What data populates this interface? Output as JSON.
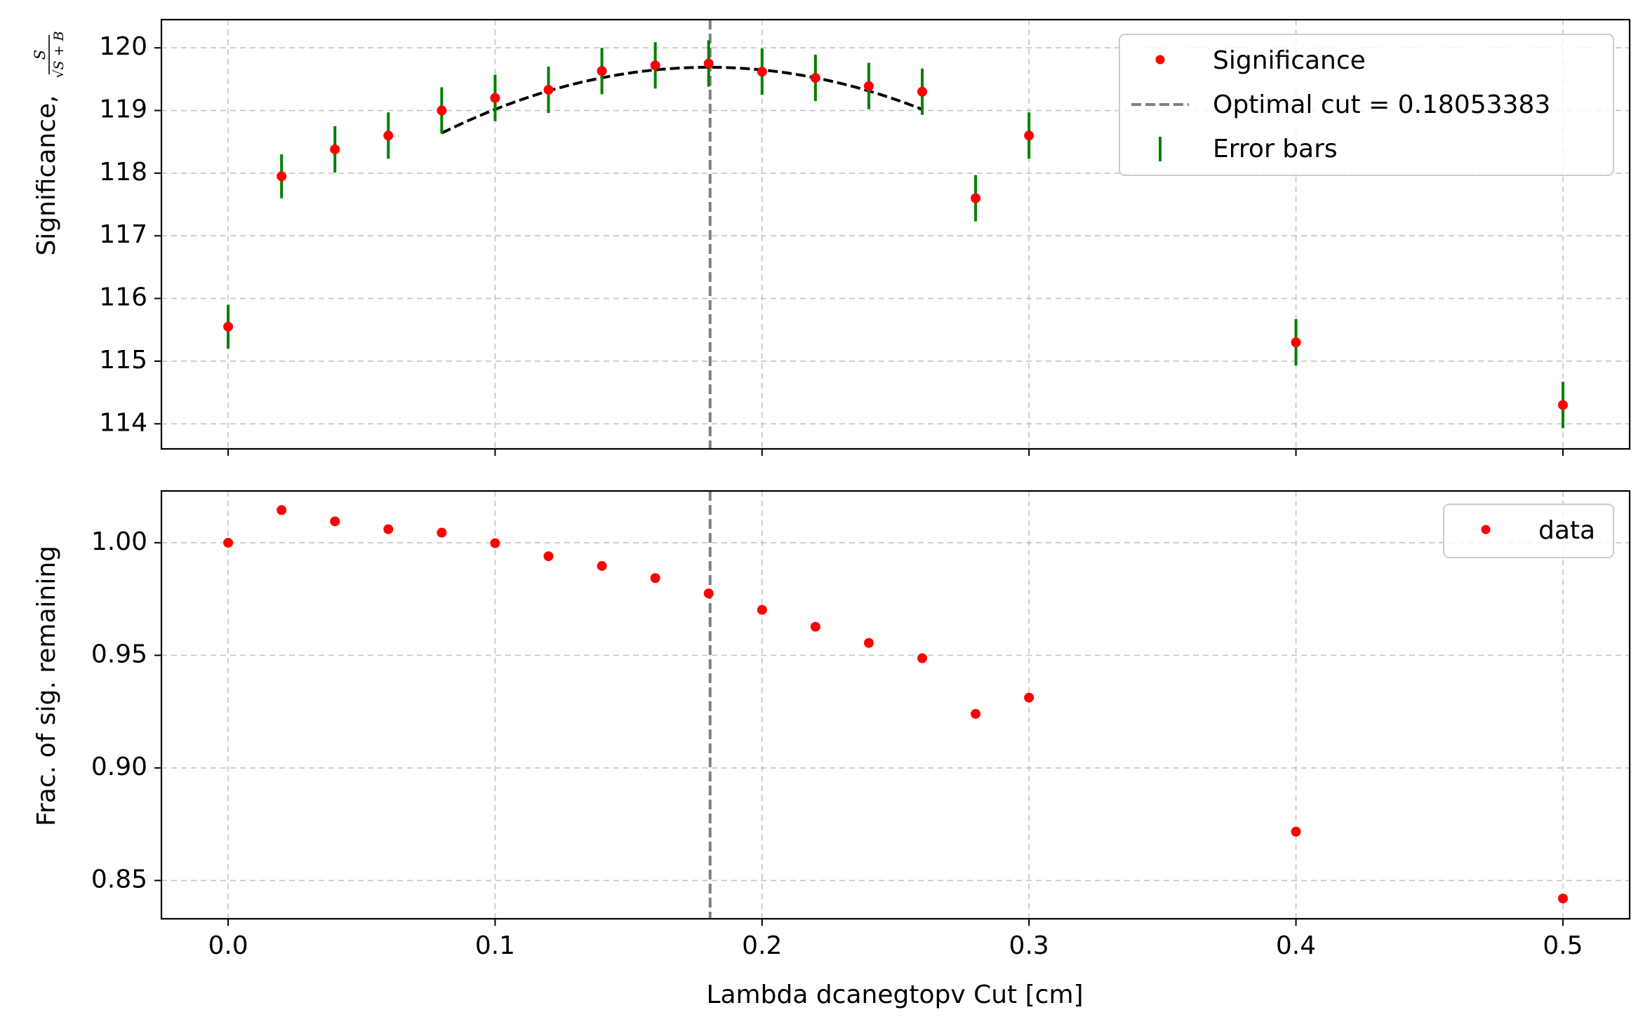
{
  "chart_data": [
    {
      "type": "scatter",
      "panel": "top",
      "ylabel": "Significance,",
      "ylabel_formula": {
        "numerator": "S",
        "denominator": "√S + B"
      },
      "xlim": [
        -0.025,
        0.525
      ],
      "ylim": [
        113.6,
        120.45
      ],
      "xticks": [
        0.0,
        0.1,
        0.2,
        0.3,
        0.4,
        0.5
      ],
      "yticks": [
        114,
        115,
        116,
        117,
        118,
        119,
        120
      ],
      "ytick_labels": [
        "114",
        "115",
        "116",
        "117",
        "118",
        "119",
        "120"
      ],
      "grid": true,
      "legend_position": "top-right",
      "legend": [
        "Significance",
        "Optimal cut = 0.18053383",
        "Error bars"
      ],
      "optimal_cut": 0.18053383,
      "series": [
        {
          "name": "Significance",
          "x": [
            0.0,
            0.02,
            0.04,
            0.06,
            0.08,
            0.1,
            0.12,
            0.14,
            0.16,
            0.18,
            0.2,
            0.22,
            0.24,
            0.26,
            0.28,
            0.3,
            0.4,
            0.5
          ],
          "y": [
            115.55,
            117.95,
            118.38,
            118.6,
            119.0,
            119.2,
            119.33,
            119.63,
            119.72,
            119.75,
            119.62,
            119.52,
            119.39,
            119.3,
            117.6,
            118.6,
            115.3,
            114.3
          ],
          "yerr": [
            0.35,
            0.35,
            0.37,
            0.37,
            0.37,
            0.37,
            0.37,
            0.37,
            0.37,
            0.37,
            0.37,
            0.37,
            0.37,
            0.37,
            0.37,
            0.37,
            0.37,
            0.37
          ],
          "color": "#ff0000",
          "error_color": "#007f00"
        },
        {
          "name": "fit",
          "type": "quadratic",
          "x_range": [
            0.08,
            0.26
          ],
          "vertex_x": 0.18,
          "vertex_y": 119.69,
          "curvature": -105,
          "color": "#000000"
        }
      ]
    },
    {
      "type": "scatter",
      "panel": "bottom",
      "xlabel": "Lambda dcanegtopv Cut [cm]",
      "ylabel": "Frac. of sig. remaining",
      "xlim": [
        -0.025,
        0.525
      ],
      "ylim": [
        0.833,
        1.023
      ],
      "xticks": [
        0.0,
        0.1,
        0.2,
        0.3,
        0.4,
        0.5
      ],
      "xtick_labels": [
        "0.0",
        "0.1",
        "0.2",
        "0.3",
        "0.4",
        "0.5"
      ],
      "yticks": [
        0.85,
        0.9,
        0.95,
        1.0
      ],
      "ytick_labels": [
        "0.85",
        "0.90",
        "0.95",
        "1.00"
      ],
      "grid": true,
      "legend_position": "top-right",
      "legend": [
        "data"
      ],
      "optimal_cut": 0.18053383,
      "series": [
        {
          "name": "data",
          "x": [
            0.0,
            0.02,
            0.04,
            0.06,
            0.08,
            0.1,
            0.12,
            0.14,
            0.16,
            0.18,
            0.2,
            0.22,
            0.24,
            0.26,
            0.28,
            0.3,
            0.4,
            0.5
          ],
          "y": [
            1.0,
            1.0145,
            1.0095,
            1.006,
            1.0045,
            0.9998,
            0.994,
            0.9897,
            0.9843,
            0.9775,
            0.9702,
            0.9627,
            0.9555,
            0.9487,
            0.924,
            0.9312,
            0.8717,
            0.842
          ],
          "color": "#ff0000"
        }
      ]
    }
  ]
}
